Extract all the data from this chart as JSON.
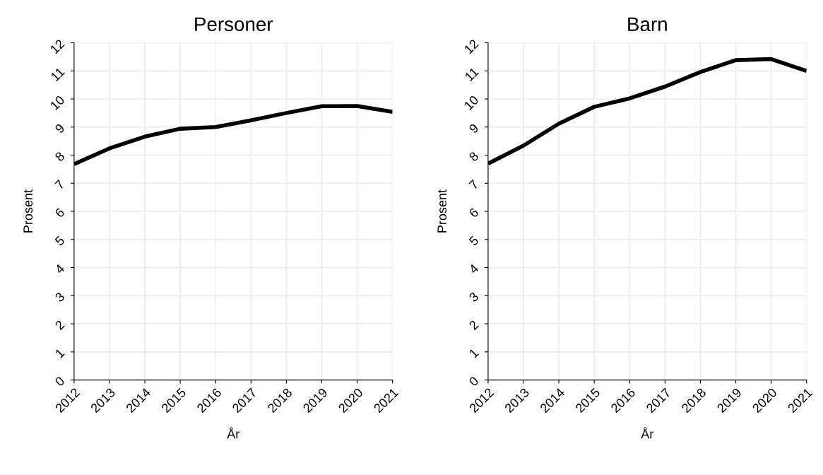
{
  "chart_data": [
    {
      "type": "line",
      "title": "Personer",
      "xlabel": "År",
      "ylabel": "Prosent",
      "x": [
        2012,
        2013,
        2014,
        2015,
        2016,
        2017,
        2018,
        2019,
        2020,
        2021
      ],
      "series": [
        {
          "color": "#000000",
          "values": [
            7.68,
            8.24,
            8.66,
            8.94,
            9.0,
            9.24,
            9.5,
            9.74,
            9.75,
            9.54
          ]
        }
      ],
      "xlim": [
        2012,
        2021
      ],
      "xticks": [
        2012,
        2013,
        2014,
        2015,
        2016,
        2017,
        2018,
        2019,
        2020,
        2021
      ],
      "ylim": [
        0,
        12
      ],
      "yticks": [
        0,
        1,
        2,
        3,
        4,
        5,
        6,
        7,
        8,
        9,
        10,
        11,
        12
      ],
      "grid": true,
      "marker": "none",
      "line_style": "solid"
    },
    {
      "type": "line",
      "title": "Barn",
      "xlabel": "År",
      "ylabel": "Prosent",
      "x": [
        2012,
        2013,
        2014,
        2015,
        2016,
        2017,
        2018,
        2019,
        2020,
        2021
      ],
      "series": [
        {
          "color": "#000000",
          "values": [
            7.7,
            8.34,
            9.12,
            9.72,
            10.02,
            10.44,
            10.96,
            11.38,
            11.42,
            11.0
          ]
        }
      ],
      "xlim": [
        2012,
        2021
      ],
      "xticks": [
        2012,
        2013,
        2014,
        2015,
        2016,
        2017,
        2018,
        2019,
        2020,
        2021
      ],
      "ylim": [
        0,
        12
      ],
      "yticks": [
        0,
        1,
        2,
        3,
        4,
        5,
        6,
        7,
        8,
        9,
        10,
        11,
        12
      ],
      "grid": true,
      "marker": "none",
      "line_style": "solid"
    }
  ]
}
